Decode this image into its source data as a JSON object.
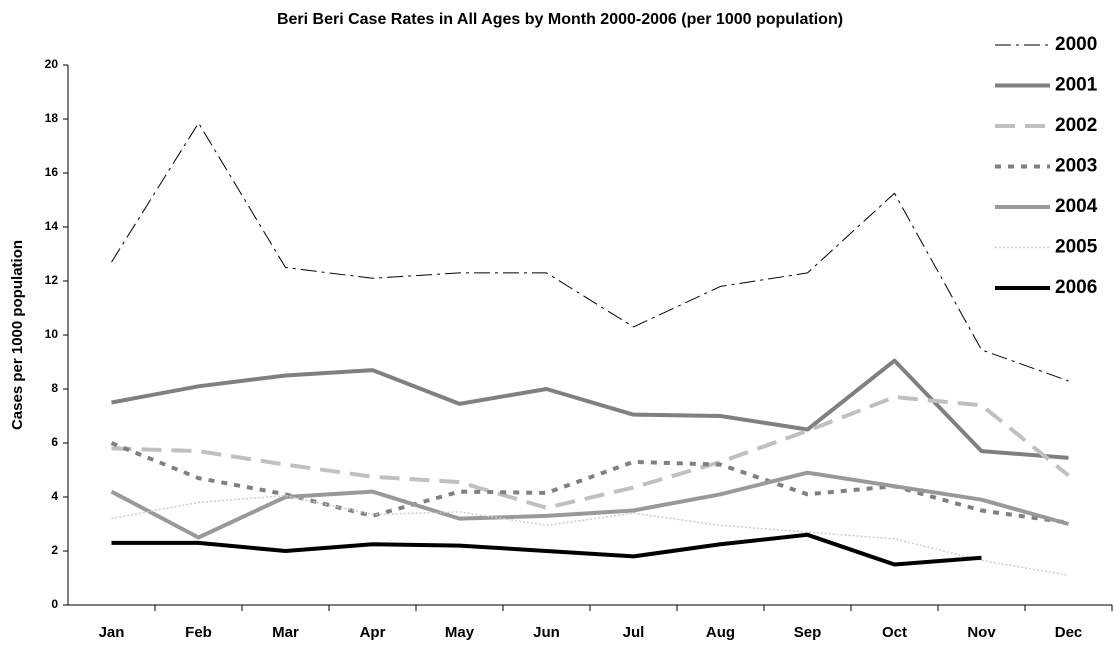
{
  "chart_data": {
    "type": "line",
    "title": "Beri Beri Case Rates in All Ages by Month 2000-2006 (per 1000 population)",
    "y_label": "Cases per 1000 population",
    "categories": [
      "Jan",
      "Feb",
      "Mar",
      "Apr",
      "May",
      "Jun",
      "Jul",
      "Aug",
      "Sep",
      "Oct",
      "Nov",
      "Dec"
    ],
    "series": [
      {
        "name": "2000",
        "color": "#000000",
        "values": [
          12.7,
          17.85,
          12.5,
          12.1,
          12.3,
          12.3,
          10.3,
          11.8,
          12.3,
          15.25,
          9.45,
          8.3
        ]
      },
      {
        "name": "2001",
        "color": "#808080",
        "values": [
          7.5,
          8.1,
          8.5,
          8.7,
          7.45,
          8.0,
          7.05,
          7.0,
          6.5,
          9.05,
          5.7,
          5.45
        ]
      },
      {
        "name": "2002",
        "color": "#c0c0c0",
        "values": [
          5.8,
          5.7,
          5.2,
          4.75,
          4.55,
          3.6,
          4.35,
          5.3,
          6.45,
          7.7,
          7.4,
          4.8
        ]
      },
      {
        "name": "2003",
        "color": "#808080",
        "values": [
          6.0,
          4.7,
          4.1,
          3.3,
          4.2,
          4.15,
          5.3,
          5.2,
          4.1,
          4.4,
          3.5,
          3.05
        ]
      },
      {
        "name": "2004",
        "color": "#999999",
        "values": [
          4.2,
          2.5,
          4.0,
          4.2,
          3.2,
          3.3,
          3.5,
          4.1,
          4.9,
          4.4,
          3.9,
          3.0
        ]
      },
      {
        "name": "2005",
        "color": "#cccccc",
        "values": [
          3.2,
          3.8,
          4.05,
          3.35,
          3.45,
          2.95,
          3.4,
          2.95,
          2.7,
          2.45,
          1.65,
          1.1
        ]
      },
      {
        "name": "2006",
        "color": "#000000",
        "values": [
          2.3,
          2.3,
          2.0,
          2.25,
          2.2,
          2.0,
          1.8,
          2.25,
          2.6,
          1.5,
          1.75,
          null
        ]
      }
    ],
    "ylim": [
      0,
      20
    ],
    "yticks": [
      0,
      2,
      4,
      6,
      8,
      10,
      12,
      14,
      16,
      18,
      20
    ],
    "grid": false,
    "legend": "top-right"
  }
}
